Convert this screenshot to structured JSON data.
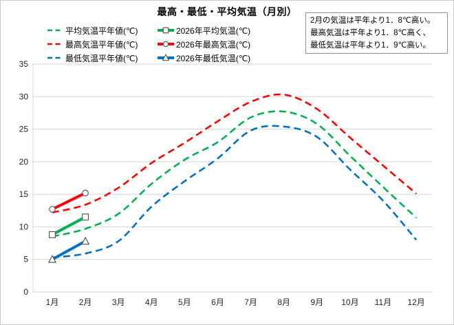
{
  "title": "最高・最低・平均気温（月別）",
  "annotation": {
    "lines": [
      "2月の気温は平年より1．8℃高い。",
      "最高気温は平年より1．8℃高く、",
      "最低気温は平年より1．9℃高い。"
    ]
  },
  "colors": {
    "average": "#00B050",
    "max": "#FF0000",
    "min": "#0070C0",
    "grid": "#D4D4D4",
    "axis_text": "#262626",
    "marker_outline": "#595959",
    "annotation_border": "#969696"
  },
  "chart_data": {
    "type": "line",
    "categories": [
      "1月",
      "2月",
      "3月",
      "4月",
      "5月",
      "6月",
      "7月",
      "8月",
      "9月",
      "10月",
      "11月",
      "12月"
    ],
    "y_ticks": [
      0,
      5,
      10,
      15,
      20,
      25,
      30,
      35
    ],
    "ylim": [
      0,
      35
    ],
    "grid": true,
    "legend_position": "top-left",
    "series": [
      {
        "name": "平均気温平年値(℃)",
        "color_key": "average",
        "line": "dashed",
        "marker": "none",
        "values": [
          8.5,
          9.7,
          12.0,
          16.6,
          20.3,
          23.0,
          26.8,
          27.7,
          25.8,
          20.9,
          16.1,
          11.4
        ]
      },
      {
        "name": "最高気温平年値(℃)",
        "color_key": "max",
        "line": "dashed",
        "marker": "none",
        "values": [
          12.2,
          13.4,
          16.0,
          19.8,
          22.9,
          26.2,
          29.2,
          30.3,
          28.1,
          23.7,
          19.4,
          15.1
        ]
      },
      {
        "name": "最低気温平年値(℃)",
        "color_key": "min",
        "line": "dashed",
        "marker": "none",
        "values": [
          5.3,
          5.9,
          7.8,
          13.1,
          17.0,
          20.5,
          24.8,
          25.4,
          23.8,
          18.8,
          14.0,
          8.0
        ]
      },
      {
        "name": "2026年平均気温(℃)",
        "color_key": "average",
        "line": "solid",
        "marker": "square",
        "values": [
          8.8,
          11.5
        ]
      },
      {
        "name": "2026年最高気温(℃)",
        "color_key": "max",
        "line": "solid",
        "marker": "circle",
        "values": [
          12.7,
          15.2
        ]
      },
      {
        "name": "2026年最低気温(℃)",
        "color_key": "min",
        "line": "solid",
        "marker": "triangle",
        "values": [
          5.0,
          7.8
        ]
      }
    ],
    "legend_layout": [
      [
        0,
        3
      ],
      [
        1,
        4
      ],
      [
        2,
        5
      ]
    ]
  }
}
